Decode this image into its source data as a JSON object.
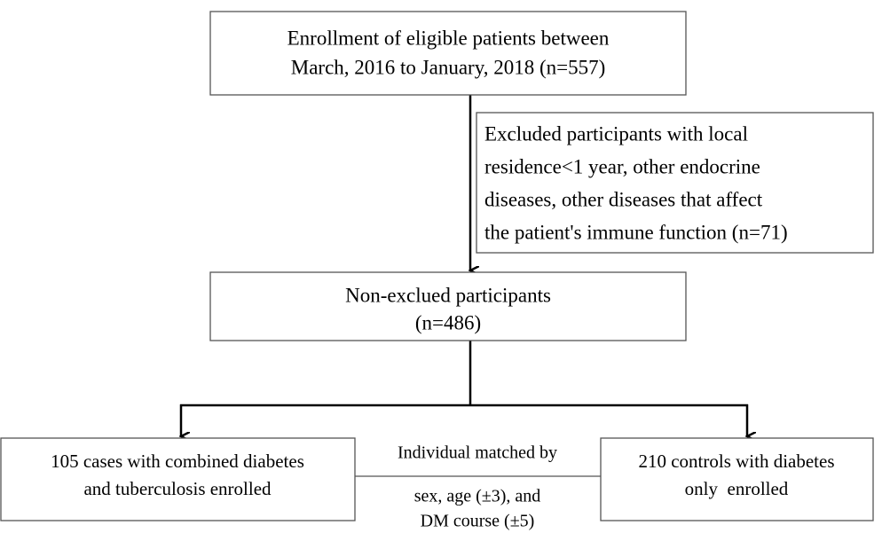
{
  "nodes": [
    {
      "lines": [
        "Enrollment of eligible patients between",
        "March, 2016 to January, 2018 (n=557)"
      ]
    },
    {
      "lines": [
        "Excluded participants with local",
        "residence<1 year, other endocrine",
        "diseases, other diseases that affect",
        "the patient's immune function (n=71)"
      ]
    },
    {
      "lines": [
        "Non-exclued participants",
        "(n=486)"
      ]
    },
    {
      "lines": [
        "105 cases with combined diabetes",
        "and tuberculosis enrolled"
      ]
    },
    {
      "lines": [
        "210 controls with diabetes",
        "only  enrolled"
      ]
    }
  ],
  "matching": {
    "lines": [
      "Individual matched by",
      "sex, age (±3), and",
      "DM course (±5)"
    ]
  }
}
